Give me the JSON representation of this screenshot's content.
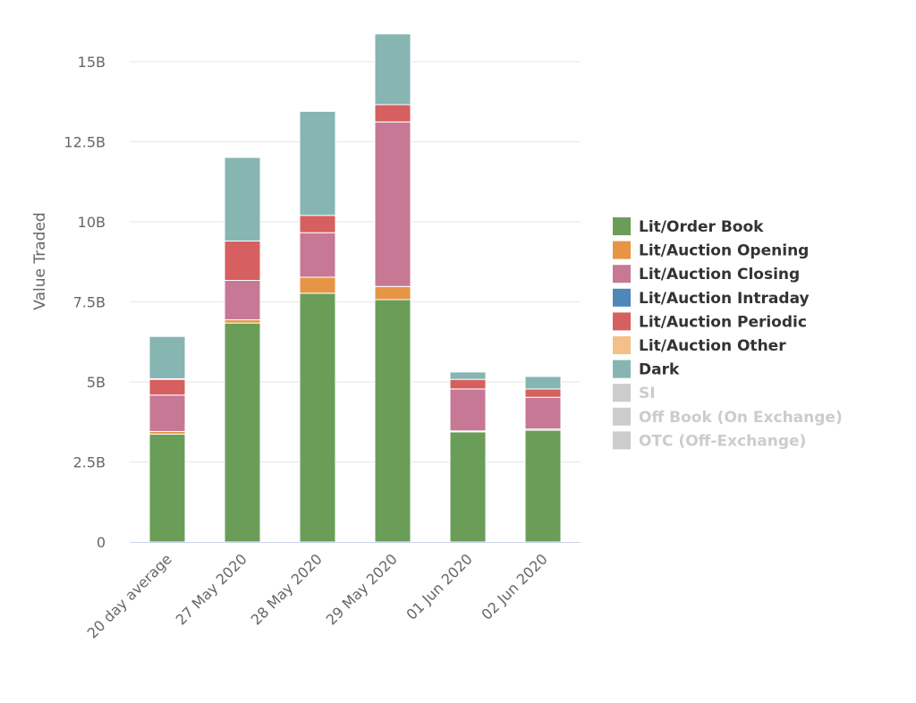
{
  "chart_data": {
    "type": "bar",
    "stacked": true,
    "title": "",
    "xlabel": "",
    "ylabel": "Value Traded",
    "ylim": [
      0,
      16
    ],
    "yticks": [
      0,
      2.5,
      5,
      7.5,
      10,
      12.5,
      15
    ],
    "ytick_labels": [
      "0",
      "2.5B",
      "5B",
      "7.5B",
      "10B",
      "12.5B",
      "15B"
    ],
    "grid": true,
    "legend_position": "right",
    "categories": [
      "20 day average",
      "27 May 2020",
      "28 May 2020",
      "29 May 2020",
      "01 Jun 2020",
      "02 Jun 2020"
    ],
    "series": [
      {
        "name": "Lit/Order Book",
        "color": "#6a9e58",
        "visible": true,
        "values": [
          3.37,
          6.84,
          7.77,
          7.57,
          3.44,
          3.49
        ]
      },
      {
        "name": "Lit/Auction Opening",
        "color": "#e69545",
        "visible": true,
        "values": [
          0.08,
          0.1,
          0.5,
          0.41,
          0.03,
          0.04
        ]
      },
      {
        "name": "Lit/Auction Closing",
        "color": "#c77894",
        "visible": true,
        "values": [
          1.14,
          1.23,
          1.39,
          5.14,
          1.31,
          0.99
        ]
      },
      {
        "name": "Lit/Auction Intraday",
        "color": "#4e87b8",
        "visible": true,
        "values": [
          0,
          0,
          0,
          0,
          0,
          0
        ]
      },
      {
        "name": "Lit/Auction Periodic",
        "color": "#d65f5f",
        "visible": true,
        "values": [
          0.49,
          1.23,
          0.54,
          0.54,
          0.3,
          0.26
        ]
      },
      {
        "name": "Lit/Auction Other",
        "color": "#f5bf88",
        "visible": true,
        "values": [
          0.02,
          0,
          0,
          0,
          0,
          0
        ]
      },
      {
        "name": "Dark",
        "color": "#86b5b2",
        "visible": true,
        "values": [
          1.32,
          2.61,
          3.25,
          2.21,
          0.23,
          0.39
        ]
      },
      {
        "name": "SI",
        "color": "#cccccc",
        "visible": false,
        "values": [
          0,
          0,
          0,
          0,
          0,
          0
        ]
      },
      {
        "name": "Off Book (On Exchange)",
        "color": "#cccccc",
        "visible": false,
        "values": [
          0,
          0,
          0,
          0,
          0,
          0
        ]
      },
      {
        "name": "OTC (Off-Exchange)",
        "color": "#cccccc",
        "visible": false,
        "values": [
          0,
          0,
          0,
          0,
          0,
          0
        ]
      }
    ]
  }
}
